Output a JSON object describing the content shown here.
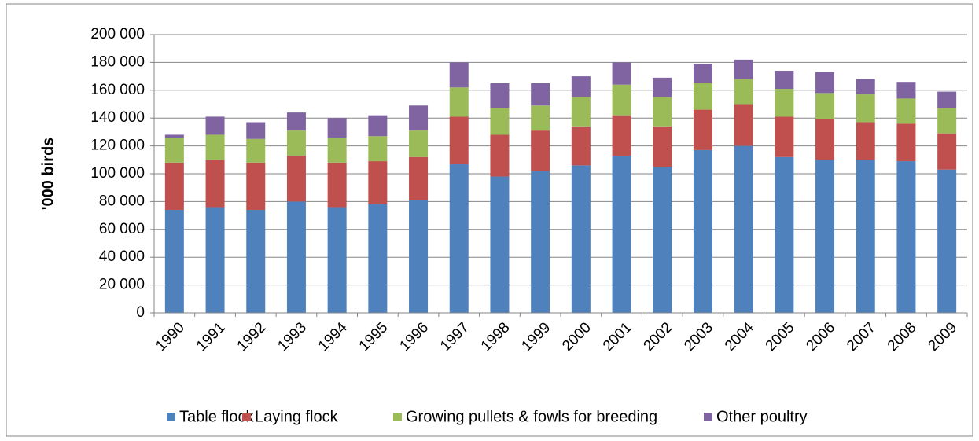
{
  "chart_data": {
    "type": "stacked_bar",
    "y_label": "'000 birds",
    "categories": [
      "1990",
      "1991",
      "1992",
      "1993",
      "1994",
      "1995",
      "1996",
      "1997",
      "1998",
      "1999",
      "2000",
      "2001",
      "2002",
      "2003",
      "2004",
      "2005",
      "2006",
      "2007",
      "2008",
      "2009"
    ],
    "series": [
      {
        "name": "Table flock",
        "color": "#4f81bd",
        "values": [
          74000,
          76000,
          74000,
          80000,
          76000,
          78000,
          81000,
          107000,
          98000,
          102000,
          106000,
          113000,
          105000,
          117000,
          120000,
          112000,
          110000,
          110000,
          109000,
          103000
        ]
      },
      {
        "name": "Laying flock",
        "color": "#c0504d",
        "values": [
          34000,
          34000,
          34000,
          33000,
          32000,
          31000,
          31000,
          34000,
          30000,
          29000,
          28000,
          29000,
          29000,
          29000,
          30000,
          29000,
          29000,
          27000,
          27000,
          26000
        ]
      },
      {
        "name": "Growing pullets & fowls for breeding",
        "color": "#9bbb59",
        "values": [
          18000,
          18000,
          17000,
          18000,
          18000,
          18000,
          19000,
          21000,
          19000,
          18000,
          21000,
          22000,
          21000,
          19000,
          18000,
          20000,
          19000,
          20000,
          18000,
          18000
        ]
      },
      {
        "name": "Other poultry",
        "color": "#8064a2",
        "values": [
          2000,
          13000,
          12000,
          13000,
          14000,
          15000,
          18000,
          18000,
          18000,
          16000,
          15000,
          16000,
          14000,
          14000,
          14000,
          13000,
          15000,
          11000,
          12000,
          12000
        ]
      }
    ],
    "ylim": [
      0,
      200000
    ],
    "yticks": [
      0,
      {
        "value": 20000,
        "label": "20 000"
      },
      {
        "value": 40000,
        "label": "40 000"
      },
      {
        "value": 60000,
        "label": "60 000"
      },
      {
        "value": 80000,
        "label": "80 000"
      },
      {
        "value": 100000,
        "label": "100 000"
      },
      {
        "value": 120000,
        "label": "120 000"
      },
      {
        "value": 140000,
        "label": "140 000"
      },
      {
        "value": 160000,
        "label": "160 000"
      },
      {
        "value": 180000,
        "label": "180 000"
      },
      {
        "value": 200000,
        "label": "200 000"
      }
    ],
    "grid": true,
    "legend": "bottom"
  }
}
